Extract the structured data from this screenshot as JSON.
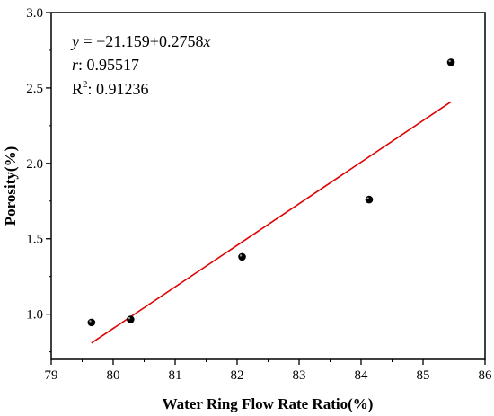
{
  "chart_data": {
    "type": "scatter",
    "title": "",
    "xlabel": "Water Ring Flow Rate Ratio(%)",
    "ylabel": "Porosity(%)",
    "xlim": [
      79,
      86
    ],
    "ylim": [
      0.7,
      3.0
    ],
    "x_ticks": [
      79,
      80,
      81,
      82,
      83,
      84,
      85,
      86
    ],
    "y_ticks": [
      1.0,
      1.5,
      2.0,
      2.5,
      3.0
    ],
    "x_tick_labels": [
      "79",
      "80",
      "81",
      "82",
      "83",
      "84",
      "85",
      "86"
    ],
    "y_tick_labels": [
      "1.0",
      "1.5",
      "2.0",
      "2.5",
      "3.0"
    ],
    "grid": false,
    "legend": "none",
    "points": [
      {
        "x": 79.65,
        "y": 0.945
      },
      {
        "x": 80.28,
        "y": 0.965
      },
      {
        "x": 82.08,
        "y": 1.38
      },
      {
        "x": 84.13,
        "y": 1.76
      },
      {
        "x": 85.45,
        "y": 2.67
      }
    ],
    "fit_line": {
      "x_start": 79.65,
      "x_end": 85.45,
      "intercept": -21.159,
      "slope": 0.2758,
      "color": "#e00000"
    },
    "point_color": "#000000",
    "annotations": {
      "equation_y": "y",
      "equation_rest": " = −21.159+0.2758",
      "equation_x": "x",
      "r_label": "r",
      "r_value": ": 0.95517",
      "r2_label": "R",
      "r2_sup": "2",
      "r2_value": ": 0.91236"
    }
  }
}
